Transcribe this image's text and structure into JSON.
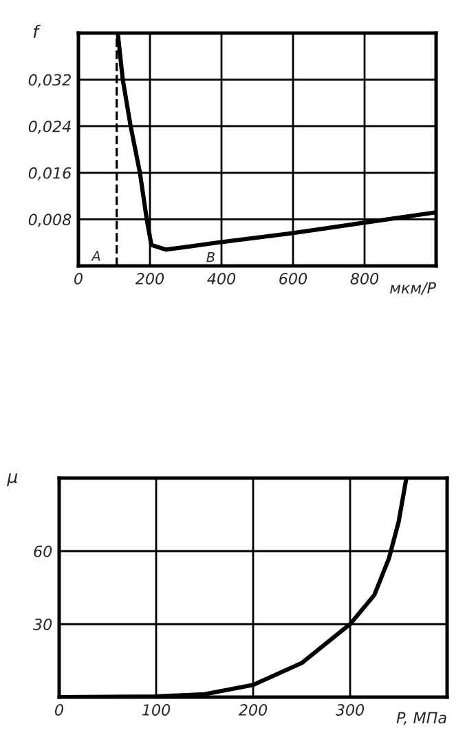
{
  "chart_data": [
    {
      "type": "line",
      "ylabel": "f",
      "xlabel": "мкм/P",
      "x": [
        110,
        124,
        146,
        172,
        191,
        204,
        245,
        294,
        387,
        594,
        1000
      ],
      "values": [
        0.04,
        0.032,
        0.024,
        0.016,
        0.008,
        0.0036,
        0.0028,
        0.0032,
        0.004,
        0.0056,
        0.0092
      ],
      "color": "#000000",
      "xlim": [
        0,
        1000
      ],
      "ylim": [
        0,
        0.04
      ],
      "xticks": [
        0,
        200,
        400,
        600,
        800
      ],
      "yticks": [
        {
          "value": 0.008,
          "label": "0,008"
        },
        {
          "value": 0.016,
          "label": "0,016"
        },
        {
          "value": 0.024,
          "label": "0,024"
        },
        {
          "value": 0.032,
          "label": "0,032"
        }
      ],
      "ref_lines": [
        {
          "axis": "x",
          "value": 107,
          "line_style": "dashed"
        }
      ],
      "annotations": [
        "A",
        "B"
      ],
      "grid": true
    },
    {
      "type": "line",
      "ylabel": "μ",
      "xlabel": "P, МПа",
      "x": [
        0,
        100,
        150,
        200,
        250,
        300,
        325,
        340,
        350,
        358
      ],
      "values": [
        0,
        0.3,
        1.2,
        5,
        14,
        30,
        42,
        57,
        72,
        90
      ],
      "color": "#000000",
      "xlim": [
        0,
        400
      ],
      "ylim": [
        0,
        90
      ],
      "xticks": [
        0,
        100,
        200,
        300
      ],
      "yticks": [
        30,
        60
      ],
      "grid": true
    }
  ]
}
